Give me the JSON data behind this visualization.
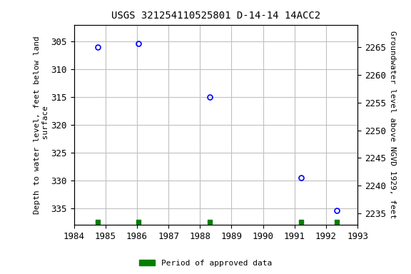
{
  "title": "USGS 321254110525801 D-14-14 14ACC2",
  "ylabel_left": "Depth to water level, feet below land\n surface",
  "ylabel_right": "Groundwater level above NGVD 1929, feet",
  "data_points": [
    {
      "year": 1984.75,
      "depth": 306.1
    },
    {
      "year": 1986.05,
      "depth": 305.4
    },
    {
      "year": 1988.3,
      "depth": 315.0
    },
    {
      "year": 1991.2,
      "depth": 329.6
    },
    {
      "year": 1992.35,
      "depth": 335.5
    }
  ],
  "approved_bars": [
    1984.75,
    1986.05,
    1988.3,
    1991.2,
    1992.35
  ],
  "xlim": [
    1984,
    1993
  ],
  "xticks": [
    1984,
    1985,
    1986,
    1987,
    1988,
    1989,
    1990,
    1991,
    1992,
    1993
  ],
  "ylim_left": [
    338,
    302
  ],
  "ylim_right": [
    2233,
    2269
  ],
  "yticks_left": [
    305,
    310,
    315,
    320,
    325,
    330,
    335
  ],
  "yticks_right": [
    2235,
    2240,
    2245,
    2250,
    2255,
    2260,
    2265
  ],
  "marker_color": "#0000ff",
  "approved_color": "#008000",
  "background_color": "#ffffff",
  "grid_color": "#c0c0c0",
  "title_fontsize": 10,
  "axis_label_fontsize": 8,
  "tick_fontsize": 9,
  "legend_label": "Period of approved data"
}
